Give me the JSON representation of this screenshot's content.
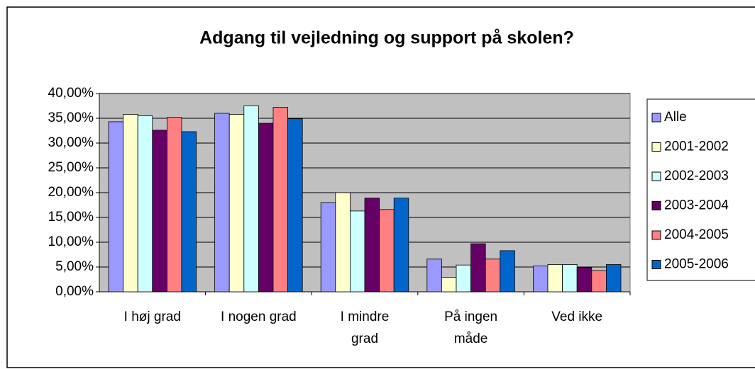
{
  "chart_data": {
    "type": "bar",
    "title": "Adgang til vejledning og support på skolen?",
    "categories": [
      "I høj grad",
      "I nogen grad",
      "I mindre grad",
      "På ingen måde",
      "Ved ikke"
    ],
    "series": [
      {
        "name": "Alle",
        "color": "#9999ff",
        "values": [
          34.3,
          36.0,
          18.0,
          6.6,
          5.2
        ]
      },
      {
        "name": "2001-2002",
        "color": "#ffffcc",
        "values": [
          35.8,
          35.8,
          20.0,
          2.9,
          5.5
        ]
      },
      {
        "name": "2002-2003",
        "color": "#ccffff",
        "values": [
          35.5,
          37.5,
          16.3,
          5.4,
          5.5
        ]
      },
      {
        "name": "2003-2004",
        "color": "#660066",
        "values": [
          32.6,
          34.0,
          18.9,
          9.7,
          4.9
        ]
      },
      {
        "name": "2004-2005",
        "color": "#ff8080",
        "values": [
          35.2,
          37.2,
          16.6,
          6.6,
          4.3
        ]
      },
      {
        "name": "2005-2006",
        "color": "#0066cc",
        "values": [
          32.3,
          34.9,
          18.9,
          8.3,
          5.5
        ]
      }
    ],
    "ylim": [
      0,
      40
    ],
    "yticks": [
      {
        "value": 0,
        "label": "0,00%"
      },
      {
        "value": 5,
        "label": "5,00%"
      },
      {
        "value": 10,
        "label": "10,00%"
      },
      {
        "value": 15,
        "label": "15,00%"
      },
      {
        "value": 20,
        "label": "20,00%"
      },
      {
        "value": 25,
        "label": "25,00%"
      },
      {
        "value": 30,
        "label": "30,00%"
      },
      {
        "value": 35,
        "label": "35,00%"
      },
      {
        "value": 40,
        "label": "40,00%"
      }
    ],
    "grid": true,
    "legend": "right"
  }
}
